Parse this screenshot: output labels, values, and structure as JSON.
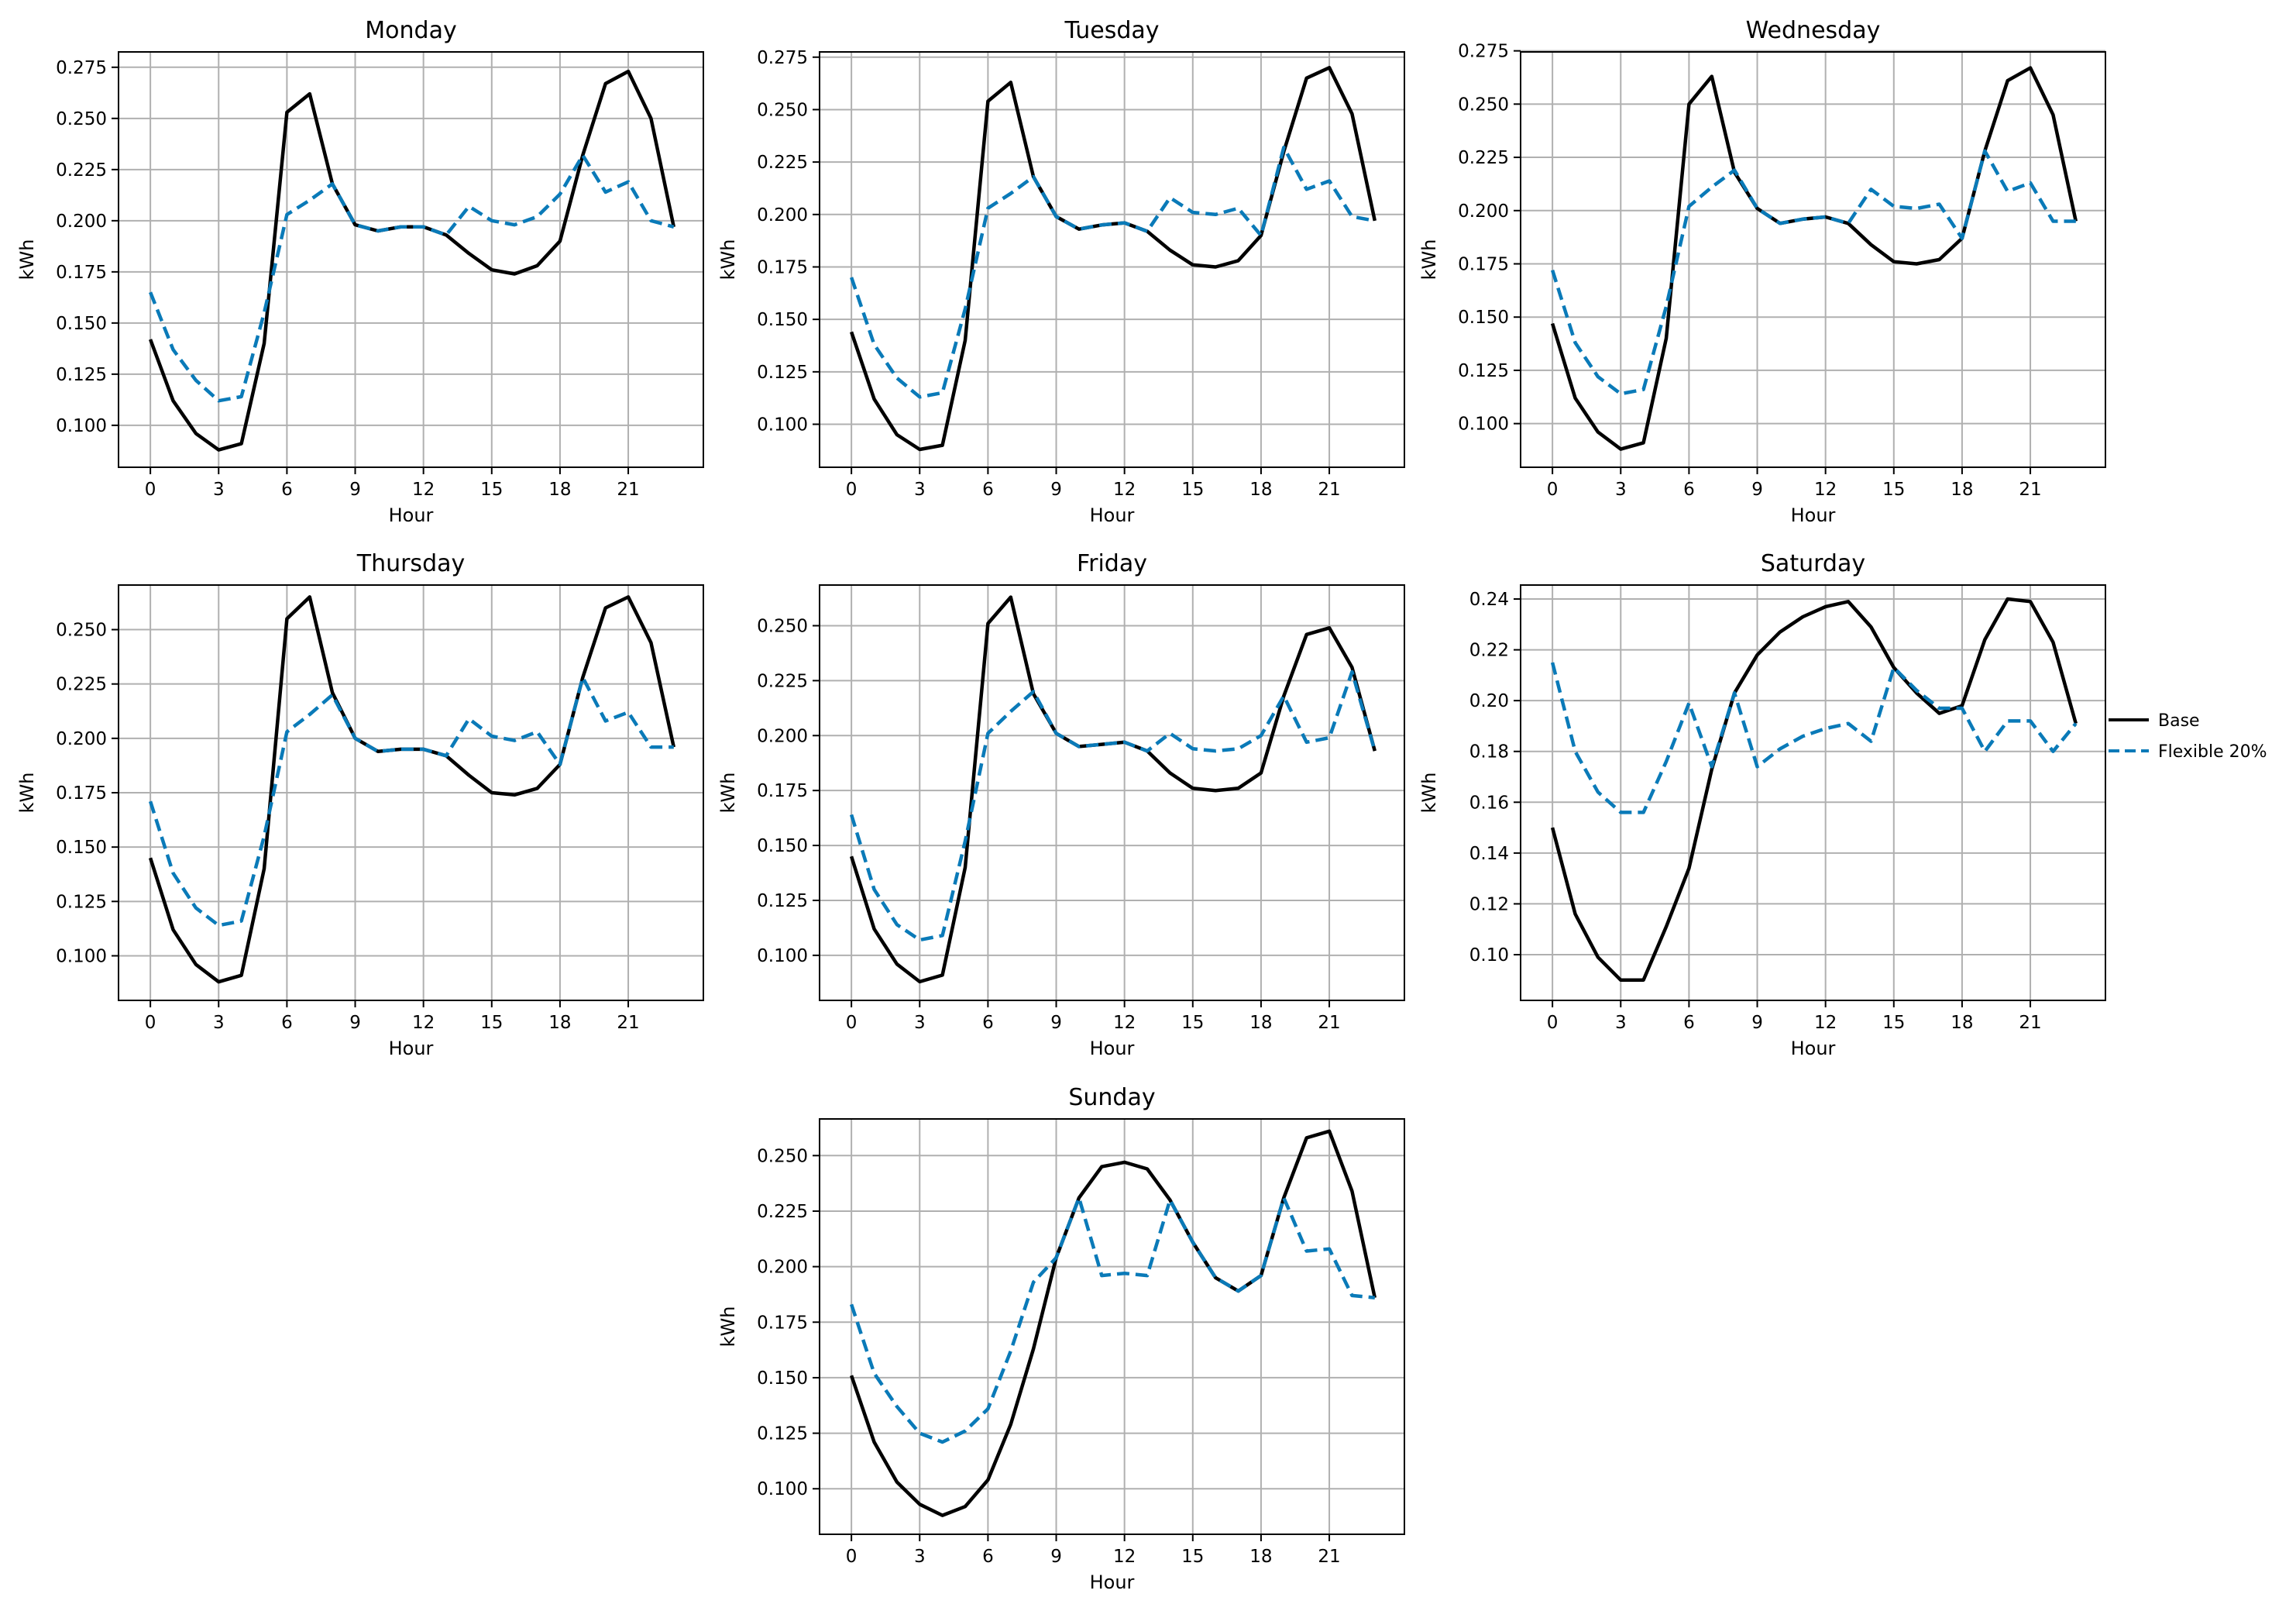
{
  "legend": {
    "placement": "right",
    "entries": [
      {
        "label": "Base",
        "color": "#000000",
        "style": "solid"
      },
      {
        "label": "Flexible 20%",
        "color": "#0a7ab8",
        "style": "dashed"
      }
    ]
  },
  "chart_data": [
    {
      "type": "line",
      "title": "Monday",
      "xlabel": "Hour",
      "ylabel": "kWh",
      "xlim": [
        -1.4,
        24.3
      ],
      "ylim": [
        0.0795,
        0.2825
      ],
      "xticks": [
        0,
        3,
        6,
        9,
        12,
        15,
        18,
        21
      ],
      "yticks": [
        0.1,
        0.125,
        0.15,
        0.175,
        0.2,
        0.225,
        0.25,
        0.275
      ],
      "ytick_labels": [
        "0.100",
        "0.125",
        "0.150",
        "0.175",
        "0.200",
        "0.225",
        "0.250",
        "0.275"
      ],
      "grid": true,
      "x": [
        0,
        1,
        2,
        3,
        4,
        5,
        6,
        7,
        8,
        9,
        10,
        11,
        12,
        13,
        14,
        15,
        16,
        17,
        18,
        19,
        20,
        21,
        22,
        23
      ],
      "series": [
        {
          "name": "Base",
          "values": [
            0.142,
            0.112,
            0.096,
            0.088,
            0.091,
            0.14,
            0.253,
            0.262,
            0.218,
            0.198,
            0.195,
            0.197,
            0.197,
            0.193,
            0.184,
            0.176,
            0.174,
            0.178,
            0.19,
            0.232,
            0.267,
            0.273,
            0.25,
            0.197
          ]
        },
        {
          "name": "Flexible 20%",
          "values": [
            0.165,
            0.137,
            0.122,
            0.112,
            0.114,
            0.155,
            0.203,
            0.21,
            0.218,
            0.198,
            0.195,
            0.197,
            0.197,
            0.193,
            0.207,
            0.2,
            0.198,
            0.202,
            0.213,
            0.232,
            0.214,
            0.219,
            0.2,
            0.197
          ]
        }
      ]
    },
    {
      "type": "line",
      "title": "Tuesday",
      "xlabel": "Hour",
      "ylabel": "kWh",
      "xlim": [
        -1.4,
        24.3
      ],
      "ylim": [
        0.0795,
        0.2775
      ],
      "xticks": [
        0,
        3,
        6,
        9,
        12,
        15,
        18,
        21
      ],
      "yticks": [
        0.1,
        0.125,
        0.15,
        0.175,
        0.2,
        0.225,
        0.25,
        0.275
      ],
      "ytick_labels": [
        "0.100",
        "0.125",
        "0.150",
        "0.175",
        "0.200",
        "0.225",
        "0.250",
        "0.275"
      ],
      "grid": true,
      "x": [
        0,
        1,
        2,
        3,
        4,
        5,
        6,
        7,
        8,
        9,
        10,
        11,
        12,
        13,
        14,
        15,
        16,
        17,
        18,
        19,
        20,
        21,
        22,
        23
      ],
      "series": [
        {
          "name": "Base",
          "values": [
            0.144,
            0.112,
            0.095,
            0.088,
            0.09,
            0.14,
            0.254,
            0.263,
            0.218,
            0.199,
            0.193,
            0.195,
            0.196,
            0.192,
            0.183,
            0.176,
            0.175,
            0.178,
            0.19,
            0.23,
            0.265,
            0.27,
            0.248,
            0.197
          ]
        },
        {
          "name": "Flexible 20%",
          "values": [
            0.17,
            0.138,
            0.122,
            0.113,
            0.115,
            0.155,
            0.203,
            0.21,
            0.218,
            0.199,
            0.193,
            0.195,
            0.196,
            0.192,
            0.208,
            0.201,
            0.2,
            0.203,
            0.19,
            0.232,
            0.212,
            0.216,
            0.199,
            0.197
          ]
        }
      ]
    },
    {
      "type": "line",
      "title": "Wednesday",
      "xlabel": "Hour",
      "ylabel": "kWh",
      "xlim": [
        -1.4,
        24.3
      ],
      "ylim": [
        0.0795,
        0.2745
      ],
      "xticks": [
        0,
        3,
        6,
        9,
        12,
        15,
        18,
        21
      ],
      "yticks": [
        0.1,
        0.125,
        0.15,
        0.175,
        0.2,
        0.225,
        0.25,
        0.275
      ],
      "ytick_labels": [
        "0.100",
        "0.125",
        "0.150",
        "0.175",
        "0.200",
        "0.225",
        "0.250",
        "0.275"
      ],
      "grid": true,
      "x": [
        0,
        1,
        2,
        3,
        4,
        5,
        6,
        7,
        8,
        9,
        10,
        11,
        12,
        13,
        14,
        15,
        16,
        17,
        18,
        19,
        20,
        21,
        22,
        23
      ],
      "series": [
        {
          "name": "Base",
          "values": [
            0.147,
            0.112,
            0.096,
            0.088,
            0.091,
            0.14,
            0.25,
            0.263,
            0.218,
            0.201,
            0.194,
            0.196,
            0.197,
            0.194,
            0.184,
            0.176,
            0.175,
            0.177,
            0.187,
            0.228,
            0.261,
            0.267,
            0.245,
            0.195
          ]
        },
        {
          "name": "Flexible 20%",
          "values": [
            0.172,
            0.138,
            0.122,
            0.114,
            0.116,
            0.155,
            0.202,
            0.211,
            0.219,
            0.201,
            0.194,
            0.196,
            0.197,
            0.194,
            0.21,
            0.202,
            0.201,
            0.203,
            0.187,
            0.228,
            0.209,
            0.213,
            0.195,
            0.195
          ]
        }
      ]
    },
    {
      "type": "line",
      "title": "Thursday",
      "xlabel": "Hour",
      "ylabel": "kWh",
      "xlim": [
        -1.4,
        24.3
      ],
      "ylim": [
        0.0795,
        0.2705
      ],
      "xticks": [
        0,
        3,
        6,
        9,
        12,
        15,
        18,
        21
      ],
      "yticks": [
        0.1,
        0.125,
        0.15,
        0.175,
        0.2,
        0.225,
        0.25
      ],
      "ytick_labels": [
        "0.100",
        "0.125",
        "0.150",
        "0.175",
        "0.200",
        "0.225",
        "0.250"
      ],
      "grid": true,
      "x": [
        0,
        1,
        2,
        3,
        4,
        5,
        6,
        7,
        8,
        9,
        10,
        11,
        12,
        13,
        14,
        15,
        16,
        17,
        18,
        19,
        20,
        21,
        22,
        23
      ],
      "series": [
        {
          "name": "Base",
          "values": [
            0.145,
            0.112,
            0.096,
            0.088,
            0.091,
            0.14,
            0.255,
            0.265,
            0.221,
            0.2,
            0.194,
            0.195,
            0.195,
            0.192,
            0.183,
            0.175,
            0.174,
            0.177,
            0.188,
            0.228,
            0.26,
            0.265,
            0.244,
            0.196
          ]
        },
        {
          "name": "Flexible 20%",
          "values": [
            0.171,
            0.138,
            0.122,
            0.114,
            0.116,
            0.155,
            0.203,
            0.211,
            0.22,
            0.2,
            0.194,
            0.195,
            0.195,
            0.192,
            0.209,
            0.201,
            0.199,
            0.203,
            0.188,
            0.228,
            0.208,
            0.212,
            0.196,
            0.196
          ]
        }
      ]
    },
    {
      "type": "line",
      "title": "Friday",
      "xlabel": "Hour",
      "ylabel": "kWh",
      "xlim": [
        -1.4,
        24.3
      ],
      "ylim": [
        0.0795,
        0.2685
      ],
      "xticks": [
        0,
        3,
        6,
        9,
        12,
        15,
        18,
        21
      ],
      "yticks": [
        0.1,
        0.125,
        0.15,
        0.175,
        0.2,
        0.225,
        0.25
      ],
      "ytick_labels": [
        "0.100",
        "0.125",
        "0.150",
        "0.175",
        "0.200",
        "0.225",
        "0.250"
      ],
      "grid": true,
      "x": [
        0,
        1,
        2,
        3,
        4,
        5,
        6,
        7,
        8,
        9,
        10,
        11,
        12,
        13,
        14,
        15,
        16,
        17,
        18,
        19,
        20,
        21,
        22,
        23
      ],
      "series": [
        {
          "name": "Base",
          "values": [
            0.145,
            0.112,
            0.096,
            0.088,
            0.091,
            0.14,
            0.251,
            0.263,
            0.219,
            0.201,
            0.195,
            0.196,
            0.197,
            0.193,
            0.183,
            0.176,
            0.175,
            0.176,
            0.183,
            0.218,
            0.246,
            0.249,
            0.231,
            0.193
          ]
        },
        {
          "name": "Flexible 20%",
          "values": [
            0.164,
            0.13,
            0.114,
            0.107,
            0.109,
            0.152,
            0.201,
            0.211,
            0.22,
            0.201,
            0.195,
            0.196,
            0.197,
            0.193,
            0.201,
            0.194,
            0.193,
            0.194,
            0.2,
            0.218,
            0.197,
            0.199,
            0.229,
            0.193
          ]
        }
      ]
    },
    {
      "type": "line",
      "title": "Saturday",
      "xlabel": "Hour",
      "ylabel": "kWh",
      "xlim": [
        -1.4,
        24.3
      ],
      "ylim": [
        0.082,
        0.2455
      ],
      "xticks": [
        0,
        3,
        6,
        9,
        12,
        15,
        18,
        21
      ],
      "yticks": [
        0.1,
        0.12,
        0.14,
        0.16,
        0.18,
        0.2,
        0.22,
        0.24
      ],
      "ytick_labels": [
        "0.10",
        "0.12",
        "0.14",
        "0.16",
        "0.18",
        "0.20",
        "0.22",
        "0.24"
      ],
      "grid": true,
      "x": [
        0,
        1,
        2,
        3,
        4,
        5,
        6,
        7,
        8,
        9,
        10,
        11,
        12,
        13,
        14,
        15,
        16,
        17,
        18,
        19,
        20,
        21,
        22,
        23
      ],
      "series": [
        {
          "name": "Base",
          "values": [
            0.15,
            0.116,
            0.099,
            0.09,
            0.09,
            0.111,
            0.134,
            0.173,
            0.203,
            0.218,
            0.227,
            0.233,
            0.237,
            0.239,
            0.229,
            0.213,
            0.203,
            0.195,
            0.198,
            0.224,
            0.24,
            0.239,
            0.223,
            0.191
          ]
        },
        {
          "name": "Flexible 20%",
          "values": [
            0.215,
            0.18,
            0.164,
            0.156,
            0.156,
            0.176,
            0.199,
            0.174,
            0.203,
            0.174,
            0.181,
            0.186,
            0.189,
            0.191,
            0.184,
            0.213,
            0.204,
            0.197,
            0.197,
            0.18,
            0.192,
            0.192,
            0.18,
            0.191
          ]
        }
      ]
    },
    {
      "type": "line",
      "title": "Sunday",
      "xlabel": "Hour",
      "ylabel": "kWh",
      "xlim": [
        -1.4,
        24.3
      ],
      "ylim": [
        0.0795,
        0.2665
      ],
      "xticks": [
        0,
        3,
        6,
        9,
        12,
        15,
        18,
        21
      ],
      "yticks": [
        0.1,
        0.125,
        0.15,
        0.175,
        0.2,
        0.225,
        0.25
      ],
      "ytick_labels": [
        "0.100",
        "0.125",
        "0.150",
        "0.175",
        "0.200",
        "0.225",
        "0.250"
      ],
      "grid": true,
      "x": [
        0,
        1,
        2,
        3,
        4,
        5,
        6,
        7,
        8,
        9,
        10,
        11,
        12,
        13,
        14,
        15,
        16,
        17,
        18,
        19,
        20,
        21,
        22,
        23
      ],
      "series": [
        {
          "name": "Base",
          "values": [
            0.151,
            0.121,
            0.103,
            0.093,
            0.088,
            0.092,
            0.104,
            0.129,
            0.163,
            0.204,
            0.231,
            0.245,
            0.247,
            0.244,
            0.23,
            0.211,
            0.195,
            0.189,
            0.196,
            0.231,
            0.258,
            0.261,
            0.234,
            0.186
          ]
        },
        {
          "name": "Flexible 20%",
          "values": [
            0.183,
            0.152,
            0.137,
            0.125,
            0.121,
            0.126,
            0.136,
            0.162,
            0.193,
            0.204,
            0.231,
            0.196,
            0.197,
            0.196,
            0.23,
            0.211,
            0.195,
            0.189,
            0.196,
            0.231,
            0.207,
            0.208,
            0.187,
            0.186
          ]
        }
      ]
    }
  ]
}
